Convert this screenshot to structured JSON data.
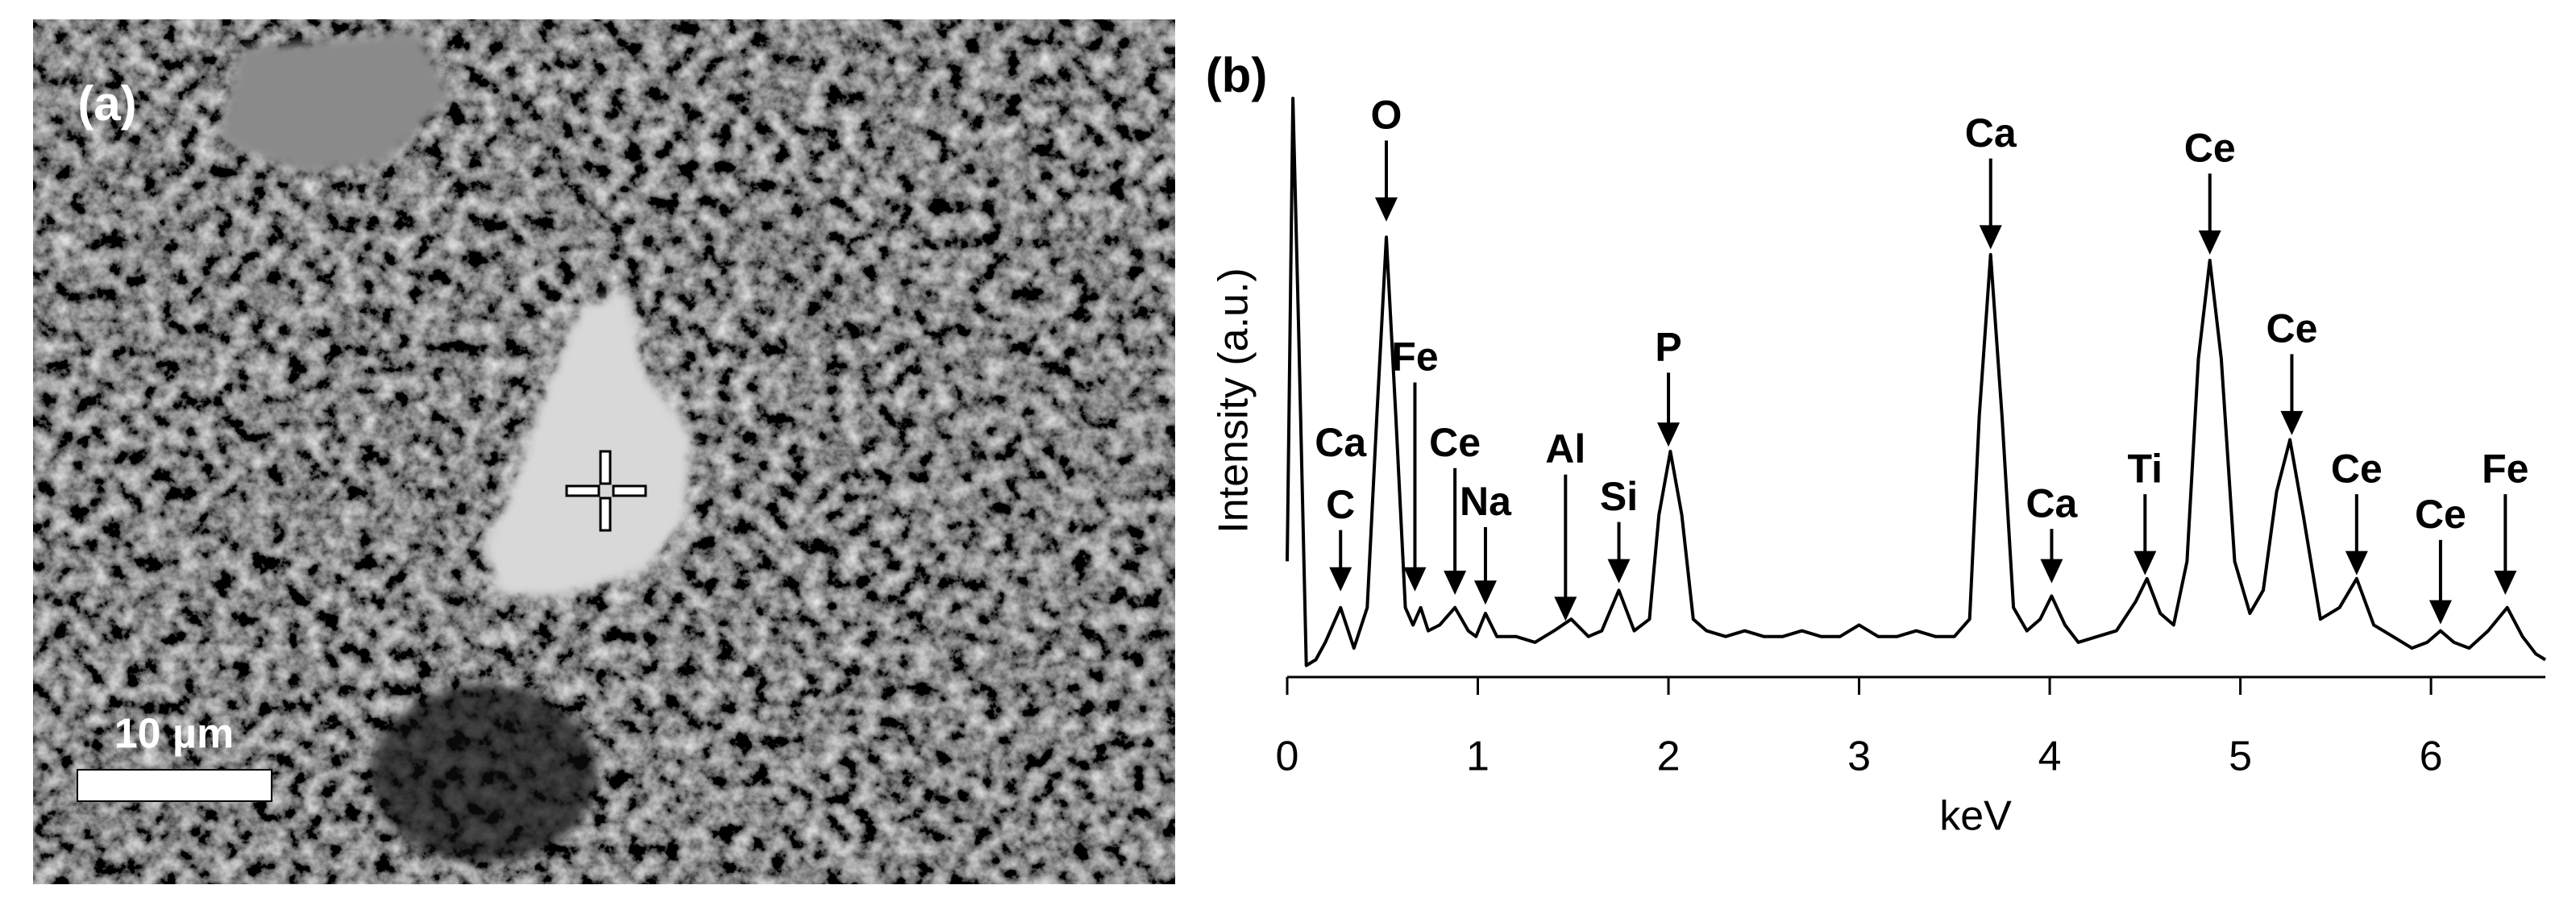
{
  "panel_a": {
    "label": "(a)",
    "scale_bar": "10 µm"
  },
  "chart_data": {
    "type": "line",
    "panel_label": "(b)",
    "x_label": "keV",
    "y_label": "Intensity (a.u.)",
    "color": "#000000",
    "x": [
      0.0,
      0.03,
      0.06,
      0.1,
      0.15,
      0.2,
      0.28,
      0.35,
      0.42,
      0.47,
      0.52,
      0.57,
      0.62,
      0.66,
      0.7,
      0.74,
      0.8,
      0.88,
      0.95,
      0.99,
      1.04,
      1.1,
      1.2,
      1.3,
      1.4,
      1.49,
      1.58,
      1.65,
      1.74,
      1.82,
      1.9,
      1.95,
      2.01,
      2.07,
      2.13,
      2.2,
      2.3,
      2.4,
      2.5,
      2.6,
      2.7,
      2.8,
      2.9,
      3.0,
      3.1,
      3.2,
      3.3,
      3.4,
      3.5,
      3.58,
      3.63,
      3.69,
      3.75,
      3.81,
      3.88,
      3.95,
      4.01,
      4.08,
      4.15,
      4.25,
      4.35,
      4.45,
      4.51,
      4.58,
      4.65,
      4.72,
      4.78,
      4.84,
      4.9,
      4.97,
      5.05,
      5.12,
      5.19,
      5.26,
      5.33,
      5.42,
      5.52,
      5.61,
      5.7,
      5.8,
      5.9,
      5.98,
      6.05,
      6.12,
      6.2,
      6.3,
      6.4,
      6.48,
      6.55,
      6.6
    ],
    "values": [
      20,
      100,
      60,
      2,
      3,
      6,
      12,
      5,
      12,
      45,
      76,
      45,
      12,
      9,
      12,
      8,
      9,
      12,
      8,
      7,
      11,
      7,
      7,
      6,
      8,
      10,
      7,
      8,
      15,
      8,
      10,
      28,
      39,
      28,
      10,
      8,
      7,
      8,
      7,
      7,
      8,
      7,
      7,
      9,
      7,
      7,
      8,
      7,
      7,
      10,
      45,
      73,
      45,
      12,
      8,
      10,
      14,
      9,
      6,
      7,
      8,
      13,
      17,
      11,
      9,
      20,
      55,
      72,
      55,
      20,
      11,
      15,
      32,
      41,
      28,
      10,
      12,
      17,
      9,
      7,
      5,
      6,
      8,
      6,
      5,
      8,
      12,
      7,
      4,
      3
    ],
    "xlim": [
      0,
      6.6
    ],
    "xticks": [
      0,
      1,
      2,
      3,
      4,
      5,
      6
    ],
    "ylim": [
      0,
      100
    ],
    "annotations": [
      {
        "text": "C",
        "x": 0.28,
        "y": 14.8,
        "label_y": 29.3
      },
      {
        "text": "Ca",
        "x": 0.28,
        "label_y": 40
      },
      {
        "text": "O",
        "x": 0.52,
        "y": 78.7,
        "label_y": 96.6
      },
      {
        "text": "Fe",
        "x": 0.67,
        "y": 14.8,
        "label_y": 54.8
      },
      {
        "text": "Ce",
        "x": 0.88,
        "y": 14.2,
        "label_y": 40
      },
      {
        "text": "Na",
        "x": 1.04,
        "y": 12.5,
        "label_y": 29.8
      },
      {
        "text": "Al",
        "x": 1.46,
        "y": 9.7,
        "label_y": 38.9
      },
      {
        "text": "Si",
        "x": 1.74,
        "y": 16.2,
        "label_y": 30.7
      },
      {
        "text": "P",
        "x": 2.0,
        "y": 39.8,
        "label_y": 56.5
      },
      {
        "text": "Ca",
        "x": 3.69,
        "y": 73.9,
        "label_y": 93.5
      },
      {
        "text": "Ca",
        "x": 4.01,
        "y": 16.2,
        "label_y": 29.5
      },
      {
        "text": "Ti",
        "x": 4.5,
        "y": 17.6,
        "label_y": 35.5
      },
      {
        "text": "Ce",
        "x": 4.84,
        "y": 73,
        "label_y": 90.9
      },
      {
        "text": "Ce",
        "x": 5.27,
        "y": 41.8,
        "label_y": 59.7
      },
      {
        "text": "Ce",
        "x": 5.61,
        "y": 17.6,
        "label_y": 35.5
      },
      {
        "text": "Ce",
        "x": 6.05,
        "y": 9.1,
        "label_y": 27.6
      },
      {
        "text": "Fe",
        "x": 6.39,
        "y": 14.2,
        "label_y": 35.5
      }
    ]
  }
}
